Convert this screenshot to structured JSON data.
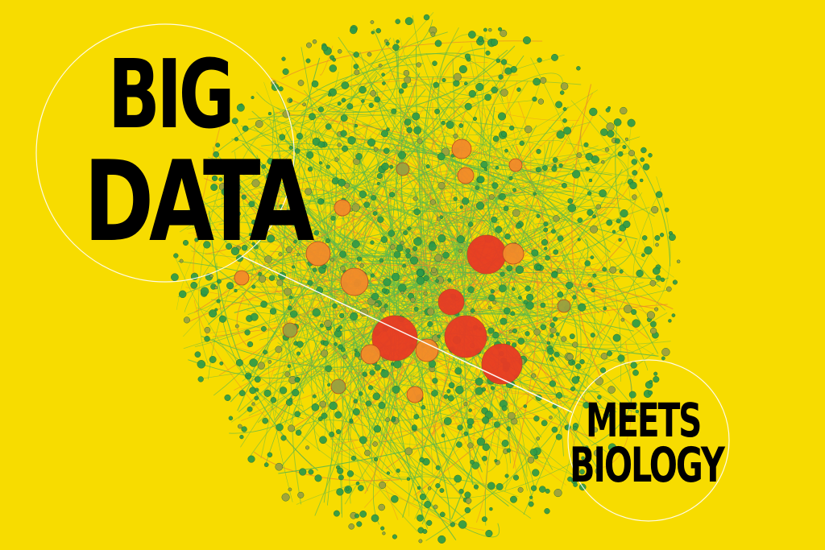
{
  "headline": {
    "line1": "BIG",
    "line2": "DATA",
    "line3": "MEETS",
    "line4": "BIOLOGY"
  },
  "colors": {
    "background": "#f7dc00",
    "text": "#000000",
    "node_green": "#2e9a48",
    "node_olive": "#9aa040",
    "node_orange": "#f28a2a",
    "node_red": "#e83a24",
    "edge_green": "#5cb84a",
    "edge_orange": "#e98a2c",
    "callout": "#ffffff"
  }
}
